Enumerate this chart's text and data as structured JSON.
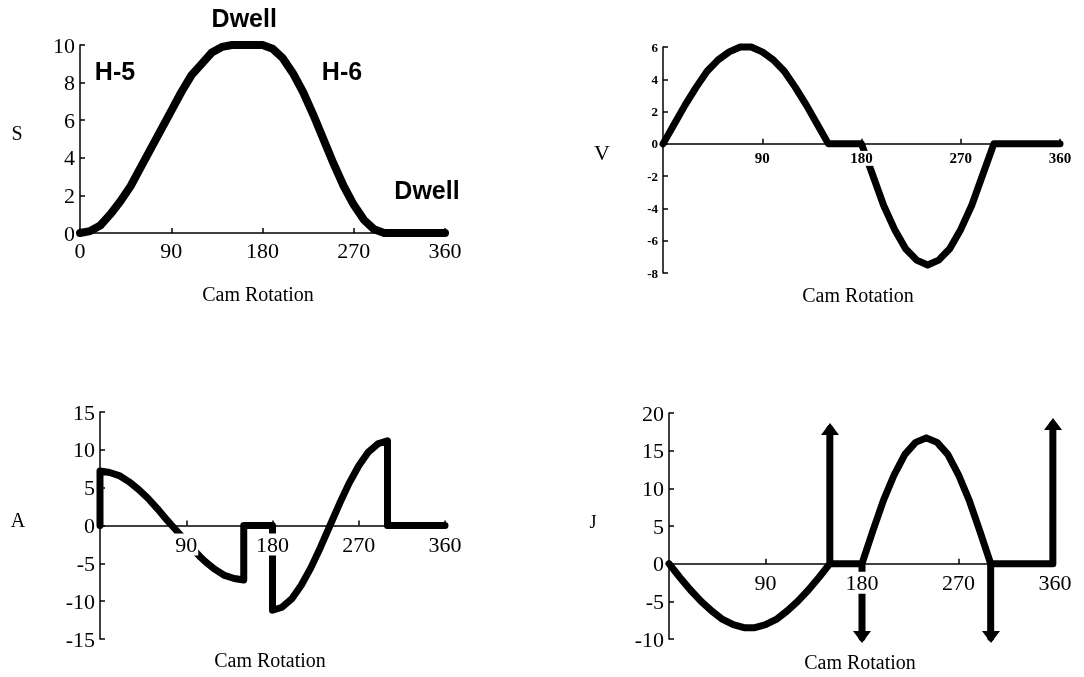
{
  "chart_data": [
    {
      "type": "line",
      "xlabel": "Cam Rotation",
      "ylabel": "S",
      "xlim": [
        0,
        360
      ],
      "xticks": [
        0,
        90,
        180,
        270,
        360
      ],
      "ylim": [
        0,
        10
      ],
      "yticks": [
        0,
        2,
        4,
        6,
        8,
        10
      ],
      "series": [
        {
          "color": "#000000",
          "x": [
            0,
            10,
            20,
            30,
            40,
            50,
            60,
            70,
            80,
            90,
            100,
            110,
            120,
            130,
            140,
            150,
            180,
            190,
            200,
            210,
            220,
            230,
            240,
            250,
            260,
            270,
            280,
            290,
            300,
            360
          ],
          "values": [
            0,
            0.1,
            0.4,
            1.0,
            1.7,
            2.5,
            3.5,
            4.5,
            5.5,
            6.5,
            7.5,
            8.4,
            9.0,
            9.6,
            9.9,
            10,
            10,
            9.8,
            9.3,
            8.5,
            7.5,
            6.3,
            5.0,
            3.7,
            2.5,
            1.5,
            0.7,
            0.2,
            0,
            0
          ]
        }
      ],
      "annotations": [
        {
          "text": "Dwell",
          "x": 162,
          "y": 10
        },
        "H-5",
        "H-6",
        "Dwell"
      ]
    },
    {
      "type": "line",
      "xlabel": "Cam Rotation",
      "ylabel": "V",
      "xlim": [
        0,
        360
      ],
      "xticks": [
        90,
        180,
        270,
        360
      ],
      "ylim": [
        -8,
        6
      ],
      "yticks": [
        -8,
        -6,
        -4,
        -2,
        0,
        2,
        4,
        6
      ],
      "series": [
        {
          "color": "#000000",
          "x": [
            0,
            10,
            20,
            30,
            40,
            50,
            60,
            70,
            80,
            90,
            100,
            110,
            120,
            130,
            140,
            150,
            180,
            190,
            200,
            210,
            220,
            230,
            240,
            250,
            260,
            270,
            280,
            290,
            300,
            360
          ],
          "values": [
            0,
            1.2,
            2.4,
            3.5,
            4.5,
            5.2,
            5.7,
            6.0,
            6.0,
            5.7,
            5.2,
            4.5,
            3.5,
            2.4,
            1.2,
            0,
            0,
            -1.9,
            -3.8,
            -5.3,
            -6.5,
            -7.2,
            -7.5,
            -7.2,
            -6.5,
            -5.3,
            -3.8,
            -1.9,
            0,
            0
          ]
        }
      ]
    },
    {
      "type": "line",
      "xlabel": "Cam Rotation",
      "ylabel": "A",
      "xlim": [
        0,
        360
      ],
      "xticks": [
        90,
        180,
        270,
        360
      ],
      "ylim": [
        -15,
        15
      ],
      "yticks": [
        -15,
        -10,
        -5,
        0,
        5,
        10,
        15
      ],
      "series": [
        {
          "color": "#000000",
          "x": [
            0,
            0,
            10,
            20,
            30,
            40,
            50,
            60,
            70,
            75,
            105,
            110,
            120,
            130,
            140,
            150,
            150,
            180,
            180,
            190,
            200,
            210,
            220,
            230,
            240,
            250,
            260,
            270,
            280,
            290,
            300,
            300,
            360
          ],
          "values": [
            0,
            7.2,
            7.0,
            6.6,
            5.8,
            4.8,
            3.6,
            2.2,
            0.7,
            0,
            -4.2,
            -4.8,
            -5.8,
            -6.6,
            -7.0,
            -7.2,
            0,
            0,
            -11.2,
            -10.8,
            -9.7,
            -7.9,
            -5.6,
            -2.9,
            0,
            2.9,
            5.6,
            7.9,
            9.7,
            10.8,
            11.2,
            0,
            0
          ]
        }
      ]
    },
    {
      "type": "line",
      "xlabel": "Cam Rotation",
      "ylabel": "J",
      "xlim": [
        0,
        360
      ],
      "xticks": [
        90,
        180,
        270,
        360
      ],
      "ylim": [
        -10,
        20
      ],
      "yticks": [
        -10,
        -5,
        0,
        5,
        10,
        15,
        20
      ],
      "series": [
        {
          "color": "#000000",
          "x": [
            0,
            10,
            20,
            30,
            40,
            50,
            60,
            70,
            80,
            90,
            100,
            110,
            120,
            130,
            140,
            150,
            150,
            150,
            180,
            180,
            180,
            190,
            200,
            210,
            220,
            230,
            240,
            250,
            260,
            270,
            280,
            290,
            300,
            300,
            300,
            358,
            358
          ],
          "values": [
            0,
            -1.8,
            -3.5,
            -5.0,
            -6.3,
            -7.4,
            -8.1,
            -8.5,
            -8.5,
            -8.1,
            -7.4,
            -6.3,
            -5.0,
            -3.5,
            -1.8,
            0,
            17.9,
            0,
            0,
            -9.8,
            0,
            4.3,
            8.4,
            11.8,
            14.5,
            16.1,
            16.7,
            16.1,
            14.5,
            11.8,
            8.4,
            4.3,
            0,
            -9.8,
            0,
            0,
            18.5
          ]
        }
      ]
    }
  ]
}
